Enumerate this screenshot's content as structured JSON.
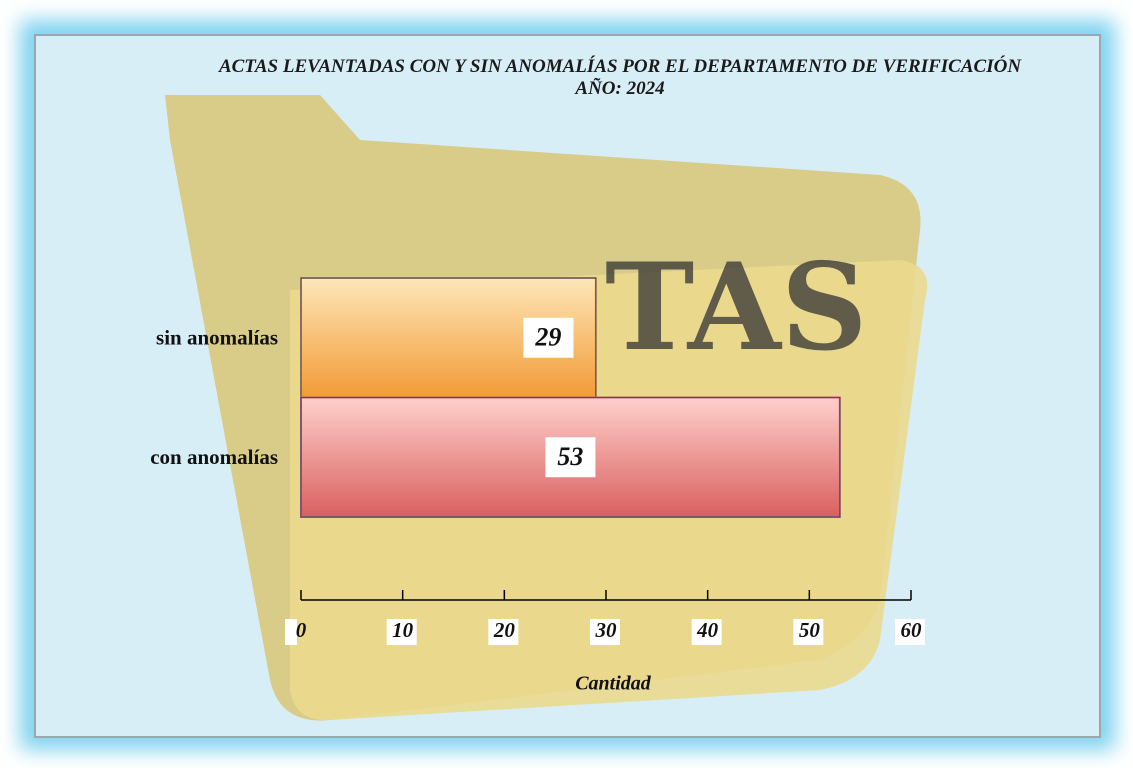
{
  "chart_data": {
    "type": "barh",
    "title": "ACTAS LEVANTADAS CON Y SIN ANOMALÍAS POR EL DEPARTAMENTO DE VERIFICACIÓN",
    "subtitle": "AÑO: 2024",
    "watermark": "TAS",
    "categories": [
      "sin anomalías",
      "con anomalías"
    ],
    "values": [
      29,
      53
    ],
    "colors": [
      "#f5a03c",
      "#e06868"
    ],
    "xlabel": "Cantidad",
    "xlim": [
      0,
      60
    ],
    "xticks": [
      0,
      10,
      20,
      30,
      40,
      50,
      60
    ]
  }
}
